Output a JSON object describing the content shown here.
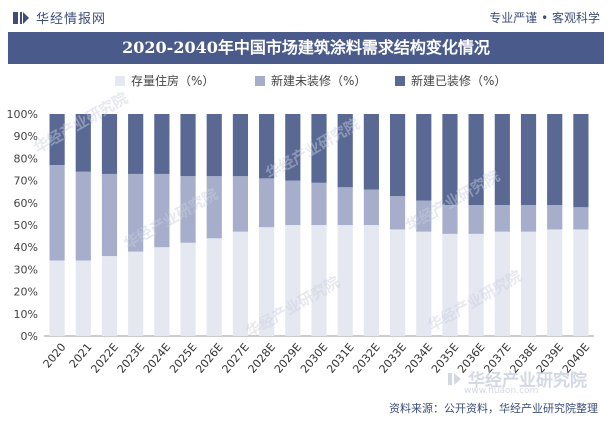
{
  "header": {
    "brand_name": "华经情报网",
    "slogan": "专业严谨 • 客观科学"
  },
  "chart_data": {
    "type": "bar",
    "stacked": true,
    "title": "2020-2040年中国市场建筑涂料需求结构变化情况",
    "categories": [
      "2020",
      "2021",
      "2022E",
      "2023E",
      "2024E",
      "2025E",
      "2026E",
      "2027E",
      "2028E",
      "2029E",
      "2030E",
      "2031E",
      "2032E",
      "2033E",
      "2034E",
      "2035E",
      "2036E",
      "2037E",
      "2038E",
      "2039E",
      "2040E"
    ],
    "series": [
      {
        "name": "存量住房（%）",
        "color": "#e6e8f1",
        "values": [
          34,
          34,
          36,
          38,
          40,
          42,
          44,
          47,
          49,
          50,
          50,
          50,
          50,
          48,
          47,
          46,
          46,
          47,
          47,
          48,
          48
        ]
      },
      {
        "name": "新建未装修（%）",
        "color": "#a6aecb",
        "values": [
          43,
          40,
          37,
          35,
          33,
          30,
          28,
          25,
          22,
          20,
          19,
          17,
          16,
          15,
          14,
          13,
          13,
          12,
          12,
          11,
          10
        ]
      },
      {
        "name": "新建已装修（%）",
        "color": "#5a6994",
        "values": [
          23,
          26,
          27,
          27,
          27,
          28,
          28,
          28,
          29,
          30,
          31,
          33,
          34,
          37,
          39,
          41,
          41,
          41,
          41,
          41,
          42
        ]
      }
    ],
    "yticks": [
      "0%",
      "10%",
      "20%",
      "30%",
      "40%",
      "50%",
      "60%",
      "70%",
      "80%",
      "90%",
      "100%"
    ],
    "ylim": [
      0,
      100
    ],
    "legend_position": "top"
  },
  "watermark": {
    "text": "华经产业研究院",
    "logo_text": "华经产业研究院",
    "url": "www.huaon.com"
  },
  "footer": {
    "source": "资料来源：公开资料，华经产业研究院整理"
  }
}
